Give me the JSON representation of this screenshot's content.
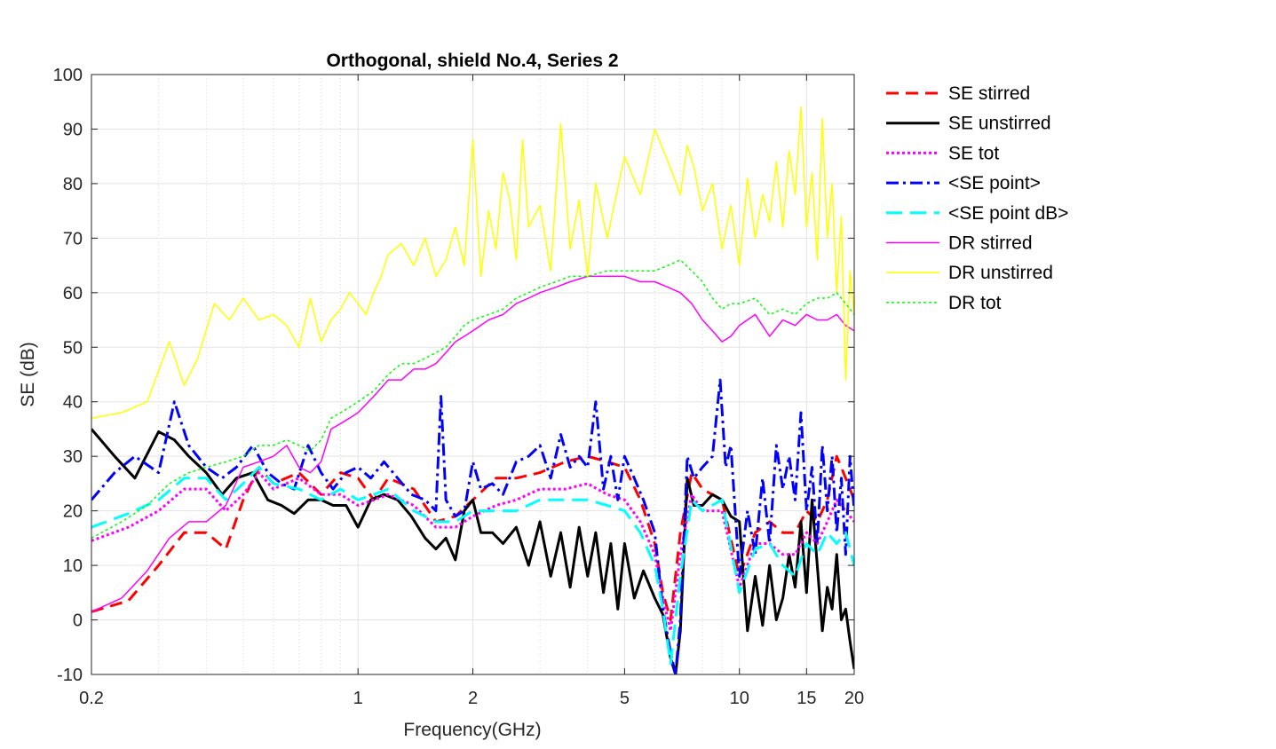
{
  "chart_data": {
    "type": "line",
    "title": "Orthogonal, shield No.4, Series 2",
    "xlabel": "Frequency(GHz)",
    "ylabel": "SE (dB)",
    "xscale": "log",
    "xlim": [
      0.2,
      20
    ],
    "ylim": [
      -10,
      100
    ],
    "x_ticks": [
      0.2,
      1,
      2,
      5,
      10,
      15,
      20
    ],
    "x_tick_labels": [
      "0.2",
      "1",
      "2",
      "5",
      "10",
      "15",
      "20"
    ],
    "y_ticks": [
      -10,
      0,
      10,
      20,
      30,
      40,
      50,
      60,
      70,
      80,
      90,
      100
    ],
    "y_tick_labels": [
      "-10",
      "0",
      "10",
      "20",
      "30",
      "40",
      "50",
      "60",
      "70",
      "80",
      "90",
      "100"
    ],
    "grid": true,
    "minor_grid": true,
    "legend_position": "outside-right",
    "series": [
      {
        "name": "SE stirred",
        "color": "#ff0000",
        "dash": "dashed",
        "width": 3,
        "x": [
          0.2,
          0.25,
          0.3,
          0.35,
          0.4,
          0.45,
          0.5,
          0.55,
          0.6,
          0.7,
          0.8,
          0.9,
          1.0,
          1.1,
          1.2,
          1.4,
          1.6,
          1.8,
          2.0,
          2.3,
          2.6,
          3.0,
          3.5,
          4.0,
          4.5,
          5.0,
          5.5,
          6.0,
          6.3,
          6.6,
          7.0,
          7.5,
          8.0,
          9.0,
          10,
          11,
          12,
          13,
          14,
          15,
          16,
          17,
          18,
          19,
          20
        ],
        "y": [
          1.5,
          3.5,
          10,
          16,
          16,
          13,
          22,
          28,
          25,
          27,
          23,
          27,
          26,
          22,
          26,
          24,
          18,
          19,
          22,
          26,
          26,
          27,
          29,
          30,
          29,
          28,
          22,
          14,
          5,
          0,
          16,
          27,
          24,
          22,
          8,
          16,
          18,
          16,
          16,
          20,
          18,
          22,
          30,
          26,
          22
        ]
      },
      {
        "name": "SE unstirred",
        "color": "#000000",
        "dash": "solid",
        "width": 3,
        "x": [
          0.2,
          0.23,
          0.26,
          0.3,
          0.33,
          0.36,
          0.4,
          0.44,
          0.48,
          0.53,
          0.58,
          0.63,
          0.68,
          0.74,
          0.8,
          0.86,
          0.93,
          1.0,
          1.08,
          1.17,
          1.27,
          1.38,
          1.5,
          1.6,
          1.7,
          1.8,
          1.9,
          2.0,
          2.1,
          2.25,
          2.4,
          2.6,
          2.8,
          3.0,
          3.2,
          3.4,
          3.6,
          3.8,
          4.0,
          4.2,
          4.4,
          4.6,
          4.8,
          5.0,
          5.3,
          5.6,
          6.0,
          6.3,
          6.6,
          6.8,
          7.0,
          7.3,
          7.6,
          8.0,
          8.5,
          9.0,
          9.5,
          10,
          10.5,
          11,
          11.5,
          12,
          12.5,
          13,
          13.5,
          14,
          14.5,
          15,
          15.5,
          16,
          16.5,
          17,
          17.5,
          18,
          18.5,
          19,
          19.5,
          20
        ],
        "y": [
          35,
          30,
          26,
          34.5,
          33,
          30,
          27,
          23,
          26,
          27,
          22,
          21,
          19.5,
          22,
          22,
          21,
          21,
          17,
          22,
          23,
          22,
          19,
          15,
          13,
          15,
          11,
          20,
          22,
          16,
          16,
          14,
          17,
          10,
          18,
          8,
          16,
          6,
          17,
          8,
          16,
          5,
          14,
          2,
          14,
          4,
          9,
          4,
          1,
          -7,
          -10,
          -2,
          26,
          21,
          21,
          23,
          22,
          19,
          18,
          -2,
          8,
          -1,
          10,
          0,
          4,
          12,
          6,
          18,
          5,
          22,
          10,
          -2,
          6,
          2,
          12,
          0,
          2,
          -4,
          -9
        ]
      },
      {
        "name": "SE tot",
        "color": "#ff00ff",
        "dash": "dotted",
        "width": 3,
        "x": [
          0.2,
          0.25,
          0.3,
          0.35,
          0.4,
          0.45,
          0.5,
          0.55,
          0.6,
          0.7,
          0.8,
          0.9,
          1.0,
          1.1,
          1.2,
          1.4,
          1.6,
          1.8,
          2.0,
          2.3,
          2.6,
          3.0,
          3.5,
          4.0,
          4.5,
          5.0,
          5.5,
          6.0,
          6.3,
          6.6,
          7.0,
          7.5,
          8.0,
          9.0,
          10,
          11,
          12,
          13,
          14,
          15,
          16,
          17,
          18,
          19,
          20
        ],
        "y": [
          14.5,
          17,
          20,
          24,
          24,
          20,
          23,
          27,
          24,
          26,
          23,
          23,
          21,
          22,
          23,
          21,
          17,
          17,
          19,
          21,
          22,
          24,
          24,
          25,
          23,
          22,
          18,
          12,
          4,
          -2,
          12,
          23,
          20,
          20,
          6,
          14,
          14,
          12,
          12,
          16,
          14,
          18,
          22,
          20,
          18
        ]
      },
      {
        "name": "<SE point>",
        "color": "#0000ff",
        "dash": "dashdot",
        "width": 3,
        "x": [
          0.2,
          0.23,
          0.26,
          0.3,
          0.33,
          0.36,
          0.4,
          0.44,
          0.48,
          0.53,
          0.58,
          0.63,
          0.68,
          0.74,
          0.8,
          0.86,
          0.93,
          1.0,
          1.08,
          1.17,
          1.27,
          1.38,
          1.5,
          1.6,
          1.65,
          1.7,
          1.8,
          1.9,
          2.0,
          2.1,
          2.25,
          2.4,
          2.6,
          2.8,
          3.0,
          3.2,
          3.4,
          3.6,
          3.8,
          4.0,
          4.2,
          4.4,
          4.6,
          4.8,
          5.0,
          5.3,
          5.6,
          6.0,
          6.3,
          6.6,
          6.8,
          7.0,
          7.3,
          7.6,
          8.0,
          8.5,
          8.9,
          9.2,
          9.5,
          10,
          10.5,
          11,
          11.5,
          12,
          12.5,
          13,
          13.5,
          14,
          14.5,
          15,
          15.5,
          16,
          16.5,
          17,
          17.5,
          18,
          18.5,
          19,
          19.5,
          20
        ],
        "y": [
          22,
          27,
          30,
          27,
          40,
          32,
          28,
          26,
          28,
          32,
          27,
          25,
          24,
          32,
          27,
          24,
          27,
          28,
          26,
          29,
          26,
          23,
          22,
          20,
          41,
          22,
          19,
          20,
          29,
          24,
          25,
          23,
          29,
          30,
          32,
          26,
          34,
          28,
          30,
          28,
          40,
          24,
          30,
          22,
          30,
          26,
          22,
          16,
          2,
          -6,
          -10,
          0,
          30,
          26,
          28,
          30,
          44,
          28,
          32,
          8,
          20,
          12,
          26,
          14,
          32,
          24,
          30,
          22,
          38,
          20,
          28,
          14,
          32,
          20,
          30,
          16,
          26,
          12,
          30,
          20
        ]
      },
      {
        "name": "<SE point dB>",
        "color": "#00ffff",
        "dash": "longdash",
        "width": 3,
        "x": [
          0.2,
          0.25,
          0.3,
          0.35,
          0.4,
          0.45,
          0.5,
          0.55,
          0.6,
          0.7,
          0.8,
          0.9,
          1.0,
          1.1,
          1.2,
          1.4,
          1.6,
          1.8,
          2.0,
          2.3,
          2.6,
          3.0,
          3.5,
          4.0,
          4.5,
          5.0,
          5.5,
          6.0,
          6.3,
          6.6,
          7.0,
          7.5,
          8.0,
          9.0,
          10,
          11,
          12,
          13,
          14,
          15,
          16,
          17,
          18,
          19,
          20
        ],
        "y": [
          17,
          19.5,
          22,
          26,
          26,
          22,
          25,
          28,
          25,
          24,
          22,
          24,
          22,
          23,
          24,
          20,
          18,
          18,
          20,
          20,
          20,
          22,
          22,
          22,
          21,
          20,
          16,
          10,
          2,
          -8,
          8,
          22,
          20,
          22,
          5,
          13,
          14,
          10,
          8,
          14,
          12,
          16,
          14,
          16,
          10
        ]
      },
      {
        "name": "DR stirred",
        "color": "#ff00ff",
        "dash": "solid",
        "width": 1.5,
        "x": [
          0.2,
          0.24,
          0.28,
          0.32,
          0.36,
          0.4,
          0.45,
          0.5,
          0.55,
          0.6,
          0.65,
          0.7,
          0.75,
          0.8,
          0.85,
          0.9,
          0.95,
          1.0,
          1.1,
          1.2,
          1.3,
          1.4,
          1.5,
          1.6,
          1.7,
          1.8,
          1.9,
          2.0,
          2.2,
          2.4,
          2.6,
          2.8,
          3.0,
          3.3,
          3.6,
          4.0,
          4.5,
          5.0,
          5.5,
          6.0,
          6.5,
          7.0,
          7.5,
          8.0,
          8.5,
          9.0,
          9.5,
          10,
          11,
          12,
          13,
          14,
          15,
          16,
          17,
          18,
          19,
          20
        ],
        "y": [
          1.5,
          4,
          9,
          15,
          18,
          18,
          21,
          28,
          29,
          30,
          32,
          28,
          27,
          29,
          35,
          36,
          37,
          38,
          41,
          44,
          44,
          46,
          46,
          47,
          49,
          51,
          52,
          53,
          55,
          56,
          58,
          59,
          60,
          61,
          62,
          63,
          63,
          63,
          62,
          62,
          61,
          60,
          58,
          55,
          53,
          51,
          52,
          54,
          56,
          52,
          55,
          54,
          56,
          55,
          55,
          56,
          54,
          53
        ]
      },
      {
        "name": "DR unstirred",
        "color": "#ffff00",
        "dash": "solid",
        "width": 1.5,
        "x": [
          0.2,
          0.24,
          0.28,
          0.32,
          0.35,
          0.38,
          0.42,
          0.46,
          0.5,
          0.55,
          0.6,
          0.65,
          0.7,
          0.75,
          0.8,
          0.85,
          0.9,
          0.95,
          1.0,
          1.05,
          1.1,
          1.15,
          1.2,
          1.3,
          1.4,
          1.5,
          1.6,
          1.7,
          1.8,
          1.9,
          2.0,
          2.1,
          2.2,
          2.3,
          2.4,
          2.5,
          2.6,
          2.7,
          2.8,
          3.0,
          3.2,
          3.4,
          3.6,
          3.8,
          4.0,
          4.2,
          4.5,
          5.0,
          5.5,
          6.0,
          6.5,
          7.0,
          7.3,
          7.6,
          8.0,
          8.5,
          9.0,
          9.5,
          10,
          10.5,
          11,
          11.5,
          12,
          12.5,
          13,
          13.5,
          14,
          14.5,
          15,
          15.5,
          16,
          16.5,
          17,
          17.5,
          18,
          18.5,
          19,
          19.5,
          20
        ],
        "y": [
          37,
          38,
          40,
          51,
          43,
          48,
          58,
          55,
          59,
          55,
          56,
          54,
          50,
          59,
          51,
          55,
          57,
          60,
          58,
          56,
          60,
          63,
          67,
          69,
          65,
          70,
          63,
          66,
          72,
          65,
          88,
          63,
          75,
          68,
          82,
          77,
          66,
          88,
          72,
          76,
          64,
          91,
          68,
          77,
          63,
          80,
          70,
          85,
          78,
          90,
          84,
          78,
          87,
          83,
          75,
          80,
          68,
          76,
          65,
          81,
          70,
          78,
          73,
          84,
          72,
          86,
          78,
          94,
          72,
          82,
          66,
          92,
          70,
          80,
          60,
          74,
          44,
          64,
          56
        ]
      },
      {
        "name": "DR tot",
        "color": "#00ff00",
        "dash": "dotted",
        "width": 1.5,
        "x": [
          0.2,
          0.24,
          0.28,
          0.32,
          0.36,
          0.4,
          0.45,
          0.5,
          0.55,
          0.6,
          0.65,
          0.7,
          0.75,
          0.8,
          0.85,
          0.9,
          0.95,
          1.0,
          1.1,
          1.2,
          1.3,
          1.4,
          1.5,
          1.6,
          1.7,
          1.8,
          1.9,
          2.0,
          2.2,
          2.4,
          2.6,
          2.8,
          3.0,
          3.3,
          3.6,
          4.0,
          4.5,
          5.0,
          5.5,
          6.0,
          6.5,
          7.0,
          7.5,
          8.0,
          8.5,
          9.0,
          9.5,
          10,
          11,
          12,
          13,
          14,
          15,
          16,
          17,
          18,
          19,
          20
        ],
        "y": [
          15,
          18,
          21,
          25,
          27,
          28,
          29,
          30,
          32,
          32,
          33,
          32,
          31,
          33,
          37,
          38,
          39,
          40,
          42,
          45,
          47,
          47,
          48,
          49,
          50,
          52,
          54,
          55,
          56,
          57,
          59,
          60,
          61,
          62,
          63,
          63,
          64,
          64,
          64,
          64,
          65,
          66,
          64,
          62,
          59,
          57,
          58,
          58,
          59,
          56,
          57,
          56,
          58,
          59,
          59,
          60,
          58,
          56
        ]
      }
    ]
  }
}
